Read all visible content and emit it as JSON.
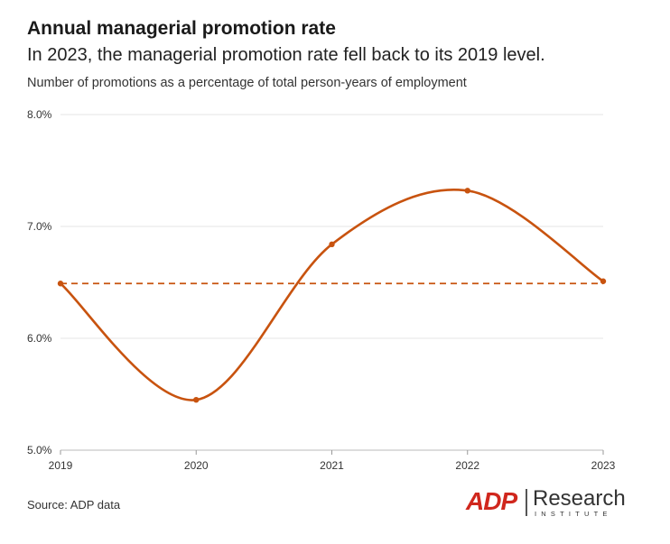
{
  "header": {
    "title": "Annual managerial promotion rate",
    "subtitle": "In 2023, the managerial promotion rate fell back to its 2019 level.",
    "caption": "Number of promotions as a percentage of total person-years of employment"
  },
  "footer": {
    "source": "Source: ADP data",
    "logo_mark": "ADP",
    "logo_name": "Research",
    "logo_sub": "INSTITUTE"
  },
  "colors": {
    "series": "#c8530f",
    "grid": "#e6e6e6",
    "axis_text": "#333333",
    "logo_red": "#d0271d"
  },
  "chart_data": {
    "type": "line",
    "x": [
      "2019",
      "2020",
      "2021",
      "2022",
      "2023"
    ],
    "series": [
      {
        "values": [
          6.49,
          5.45,
          6.84,
          7.32,
          6.51
        ]
      }
    ],
    "reference_line": {
      "value": 6.49,
      "style": "dashed"
    },
    "ylim": [
      5.0,
      8.0
    ],
    "yticks": [
      5.0,
      6.0,
      7.0,
      8.0
    ],
    "ytick_labels": [
      "5.0%",
      "6.0%",
      "7.0%",
      "8.0%"
    ],
    "smooth": true,
    "markers": true,
    "grid": "horizontal",
    "legend": "none"
  }
}
